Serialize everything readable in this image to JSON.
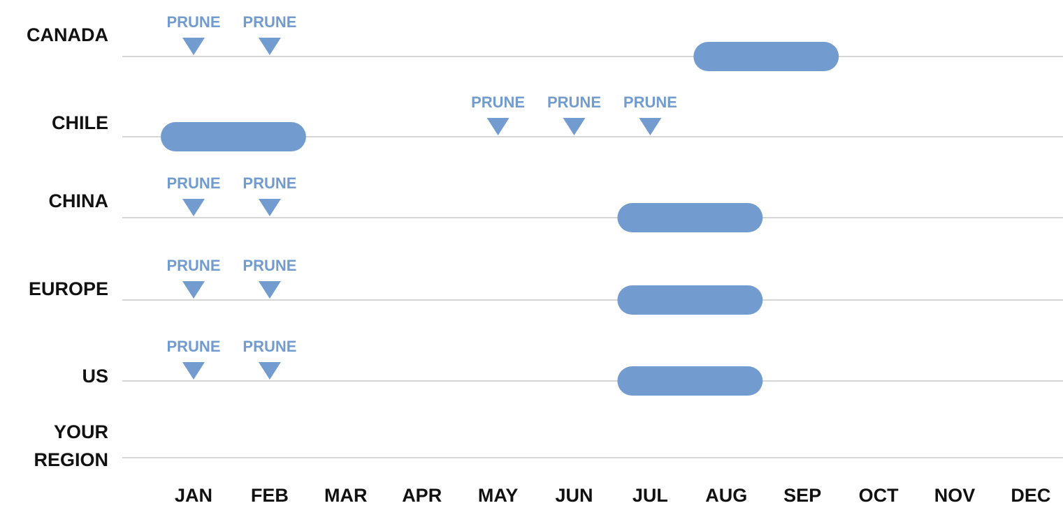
{
  "chart_data": {
    "type": "timeline",
    "color": "#729ccf",
    "months": [
      "JAN",
      "FEB",
      "MAR",
      "APR",
      "MAY",
      "JUN",
      "JUL",
      "AUG",
      "SEP",
      "OCT",
      "NOV",
      "DEC"
    ],
    "rows": [
      {
        "name": [
          "CANADA"
        ],
        "prunes": [
          {
            "label": "PRUNE",
            "month": "JAN"
          },
          {
            "label": "PRUNE",
            "month": "FEB"
          }
        ],
        "span": [
          "AUG",
          "SEP"
        ]
      },
      {
        "name": [
          "CHILE"
        ],
        "prunes": [
          {
            "label": "PRUNE",
            "month": "MAY"
          },
          {
            "label": "PRUNE",
            "month": "JUN"
          },
          {
            "label": "PRUNE",
            "month": "JUL"
          }
        ],
        "span": [
          "JAN",
          "FEB"
        ]
      },
      {
        "name": [
          "CHINA"
        ],
        "prunes": [
          {
            "label": "PRUNE",
            "month": "JAN"
          },
          {
            "label": "PRUNE",
            "month": "FEB"
          }
        ],
        "span": [
          "JUL",
          "AUG"
        ]
      },
      {
        "name": [
          "EUROPE"
        ],
        "prunes": [
          {
            "label": "PRUNE",
            "month": "JAN"
          },
          {
            "label": "PRUNE",
            "month": "FEB"
          }
        ],
        "span": [
          "JUL",
          "AUG"
        ]
      },
      {
        "name": [
          "US"
        ],
        "prunes": [
          {
            "label": "PRUNE",
            "month": "JAN"
          },
          {
            "label": "PRUNE",
            "month": "FEB"
          }
        ],
        "span": [
          "JUL",
          "AUG"
        ]
      },
      {
        "name": [
          "YOUR",
          "REGION"
        ],
        "prunes": [],
        "span": null
      }
    ]
  }
}
